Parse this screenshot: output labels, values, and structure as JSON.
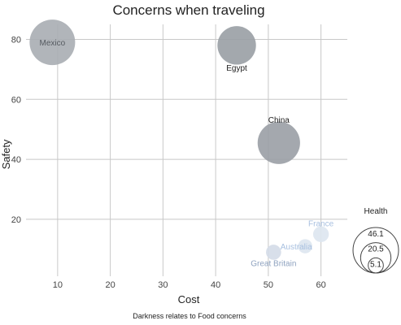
{
  "chart_data": {
    "type": "scatter",
    "title": "Concerns when traveling",
    "xlabel": "Cost",
    "ylabel": "Safety",
    "caption": "Darkness relates to Food concerns",
    "xlim": [
      4,
      65
    ],
    "ylim": [
      1,
      85
    ],
    "xticks": [
      10,
      20,
      30,
      40,
      50,
      60
    ],
    "yticks": [
      20,
      40,
      60,
      80
    ],
    "grid": true,
    "size_legend": {
      "title": "Health",
      "values": [
        46.1,
        20.5,
        5.1
      ],
      "position": "right"
    },
    "points": [
      {
        "label": "Mexico",
        "x": 9,
        "y": 79,
        "health": 46.1,
        "color": "#a9adb2",
        "label_color": "#555a60"
      },
      {
        "label": "Egypt",
        "x": 44,
        "y": 78,
        "health": 33,
        "color": "#999ea4",
        "label_color": "#222222"
      },
      {
        "label": "China",
        "x": 52,
        "y": 45.5,
        "health": 40,
        "color": "#9a9fa5",
        "label_color": "#222222"
      },
      {
        "label": "France",
        "x": 60,
        "y": 15,
        "health": 5.5,
        "color": "#dde5f0",
        "label_color": "#a8c0e0"
      },
      {
        "label": "Australia",
        "x": 57,
        "y": 11,
        "health": 4.5,
        "color": "#dde5f0",
        "label_color": "#a8c0e0"
      },
      {
        "label": "Great Britain",
        "x": 51,
        "y": 9,
        "health": 5.1,
        "color": "#d4dce8",
        "label_color": "#8fa3c0"
      }
    ]
  }
}
